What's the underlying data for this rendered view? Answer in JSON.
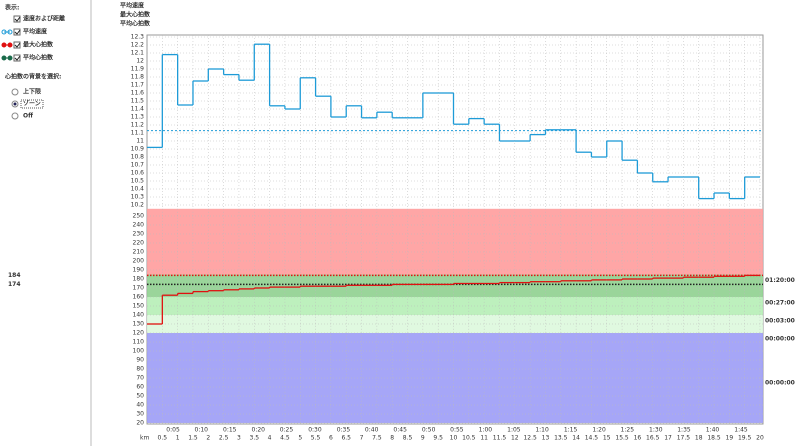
{
  "controls": {
    "show_label": "表示:",
    "checkboxes": [
      {
        "label": "速度および距離",
        "checked": true
      },
      {
        "label": "平均速度",
        "checked": true
      },
      {
        "label": "最大心拍数",
        "checked": true
      },
      {
        "label": "平均心拍数",
        "checked": true
      }
    ],
    "background_label": "心拍数の背景を選択:",
    "radios": [
      {
        "label": "上下限",
        "selected": false
      },
      {
        "label": "ゾーン",
        "selected": true
      },
      {
        "label": "Off",
        "selected": false
      }
    ]
  },
  "legend": [
    {
      "name": "平均速度",
      "color": "#1e9bd7"
    },
    {
      "name": "最大心拍数",
      "color": "#e01010"
    },
    {
      "name": "平均心拍数",
      "color": "#1a8a1a"
    }
  ],
  "chart_data": [
    {
      "type": "step",
      "color": "#1e9bd7",
      "x": [
        0,
        0.5,
        1,
        1.5,
        2,
        2.5,
        3,
        3.5,
        4,
        4.5,
        5,
        5.5,
        6,
        6.5,
        7,
        7.5,
        8,
        8.5,
        9,
        9.5,
        10,
        10.5,
        11,
        11.5,
        12,
        12.5,
        13,
        13.5,
        14,
        14.5,
        15,
        15.5,
        16,
        16.5,
        17,
        17.5,
        18,
        18.5,
        19,
        19.5
      ],
      "values": [
        10.92,
        12.08,
        11.45,
        11.75,
        11.9,
        11.83,
        11.76,
        12.21,
        11.44,
        11.4,
        11.79,
        11.56,
        11.3,
        11.44,
        11.29,
        11.36,
        11.29,
        11.29,
        11.6,
        11.6,
        11.21,
        11.28,
        11.21,
        11.0,
        11.0,
        11.08,
        11.14,
        11.14,
        10.86,
        10.8,
        11.0,
        10.76,
        10.6,
        10.49,
        10.55,
        10.55,
        10.28,
        10.35,
        10.28,
        10.55
      ],
      "xlim": [
        0,
        20
      ],
      "ylim": [
        10.2,
        12.3
      ],
      "yticks": [
        10.2,
        10.3,
        10.4,
        10.5,
        10.6,
        10.7,
        10.8,
        10.9,
        11,
        11.1,
        11.2,
        11.3,
        11.4,
        11.5,
        11.6,
        11.7,
        11.8,
        11.9,
        12,
        12.1,
        12.2,
        12.3
      ],
      "reference_lines": [
        {
          "value": 11.13,
          "color": "#1e9bd7"
        }
      ],
      "grid": true
    },
    {
      "type": "step",
      "color": "#e01010",
      "x": [
        0,
        0.5,
        1,
        1.5,
        2,
        2.5,
        3,
        3.5,
        4,
        4.5,
        5,
        5.5,
        6,
        6.5,
        7,
        7.5,
        8,
        8.5,
        9,
        9.5,
        10,
        10.5,
        11,
        11.5,
        12,
        12.5,
        13,
        13.5,
        14,
        14.5,
        15,
        15.5,
        16,
        16.5,
        17,
        17.5,
        18,
        18.5,
        19,
        19.5
      ],
      "values": [
        130,
        162,
        164,
        166,
        167,
        168,
        169,
        170,
        171,
        171,
        172,
        172,
        172,
        173,
        173,
        173,
        174,
        174,
        174,
        174,
        175,
        175,
        175,
        176,
        176,
        177,
        177,
        178,
        178,
        179,
        179,
        180,
        180,
        181,
        181,
        182,
        182,
        183,
        183,
        184
      ],
      "xlim": [
        0,
        20
      ],
      "ylim": [
        20,
        258
      ],
      "yticks": [
        20,
        30,
        40,
        50,
        60,
        70,
        80,
        90,
        100,
        110,
        120,
        130,
        140,
        150,
        160,
        170,
        180,
        190,
        200,
        210,
        220,
        230,
        240,
        250
      ],
      "xlabel": "km",
      "xticks": [
        0.5,
        1,
        1.5,
        2,
        2.5,
        3,
        3.5,
        4,
        4.5,
        5,
        5.5,
        6,
        6.5,
        7,
        7.5,
        8,
        8.5,
        9,
        9.5,
        10,
        10.5,
        11,
        11.5,
        12,
        12.5,
        13,
        13.5,
        14,
        14.5,
        15,
        15.5,
        16,
        16.5,
        17,
        17.5,
        18,
        18.5,
        19,
        19.5,
        20
      ],
      "time_ticks": [
        {
          "value": 0.85,
          "label": "0:05"
        },
        {
          "value": 1.77,
          "label": "0:10"
        },
        {
          "value": 2.7,
          "label": "0:15"
        },
        {
          "value": 3.63,
          "label": "0:20"
        },
        {
          "value": 4.55,
          "label": "0:25"
        },
        {
          "value": 5.48,
          "label": "0:30"
        },
        {
          "value": 6.41,
          "label": "0:35"
        },
        {
          "value": 7.33,
          "label": "0:40"
        },
        {
          "value": 8.26,
          "label": "0:45"
        },
        {
          "value": 9.19,
          "label": "0:50"
        },
        {
          "value": 10.11,
          "label": "0:55"
        },
        {
          "value": 11.04,
          "label": "1:00"
        },
        {
          "value": 11.97,
          "label": "1:05"
        },
        {
          "value": 12.89,
          "label": "1:10"
        },
        {
          "value": 13.82,
          "label": "1:15"
        },
        {
          "value": 14.75,
          "label": "1:20"
        },
        {
          "value": 15.67,
          "label": "1:25"
        },
        {
          "value": 16.6,
          "label": "1:30"
        },
        {
          "value": 17.52,
          "label": "1:35"
        },
        {
          "value": 18.45,
          "label": "1:40"
        },
        {
          "value": 19.38,
          "label": "1:45"
        }
      ],
      "reference_lines": [
        {
          "value": 184,
          "color": "#e01010",
          "label_color": "#e01010"
        },
        {
          "value": 174,
          "color": "#222222",
          "label_color": "#1a8a1a"
        }
      ],
      "zones": [
        {
          "range": [
            185,
            258
          ],
          "color": "#ff9c9c",
          "time": "01:20:00",
          "label_color": "#e01010"
        },
        {
          "range": [
            160,
            185
          ],
          "color": "#8fd08f",
          "time": "00:27:00",
          "label_color": "#1a6a1a"
        },
        {
          "range": [
            140,
            160
          ],
          "color": "#b6eeb6",
          "time": "00:03:00",
          "label_color": "#22aa22"
        },
        {
          "range": [
            120,
            140
          ],
          "color": "#ddf8dd",
          "time": "00:00:00",
          "label_color": "#66cc66"
        },
        {
          "range": [
            20,
            120
          ],
          "color": "#9c9cf6",
          "time": "00:00:00",
          "label_color": "#2233aa"
        }
      ],
      "grid": true
    }
  ]
}
